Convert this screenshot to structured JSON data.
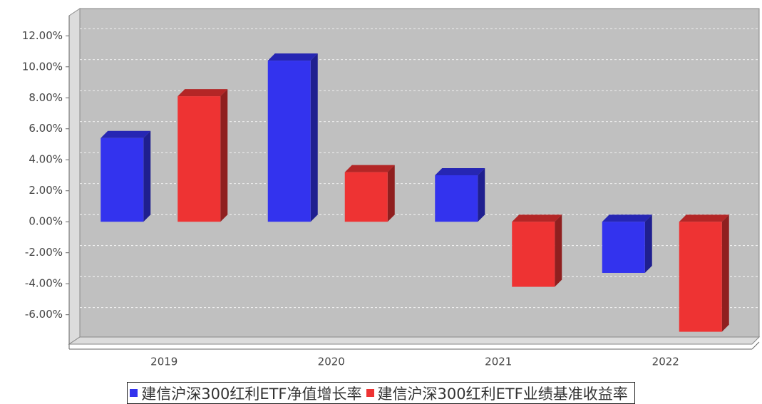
{
  "chart_data": {
    "type": "bar3d",
    "categories": [
      "2019",
      "2020",
      "2021",
      "2022"
    ],
    "series": [
      {
        "name": "建信沪深300红利ETF净值增长率",
        "color": "#3333ee",
        "values": [
          5.4,
          10.4,
          3.0,
          -3.3
        ]
      },
      {
        "name": "建信沪深300红利ETF业绩基准收益率",
        "color": "#ee3333",
        "values": [
          8.1,
          3.2,
          -4.2,
          -7.1
        ]
      }
    ],
    "ylim": [
      -7.9,
      13.3
    ],
    "yticks": [
      {
        "value": -6,
        "label": "-6.00%"
      },
      {
        "value": -4,
        "label": "-4.00%"
      },
      {
        "value": -2,
        "label": "-2.00%"
      },
      {
        "value": 0,
        "label": "0.00%"
      },
      {
        "value": 2,
        "label": "2.00%"
      },
      {
        "value": 4,
        "label": "4.00%"
      },
      {
        "value": 6,
        "label": "6.00%"
      },
      {
        "value": 8,
        "label": "8.00%"
      },
      {
        "value": 10,
        "label": "10.00%"
      },
      {
        "value": 12,
        "label": "12.00%"
      }
    ],
    "grid": true,
    "legend": "bottom"
  }
}
